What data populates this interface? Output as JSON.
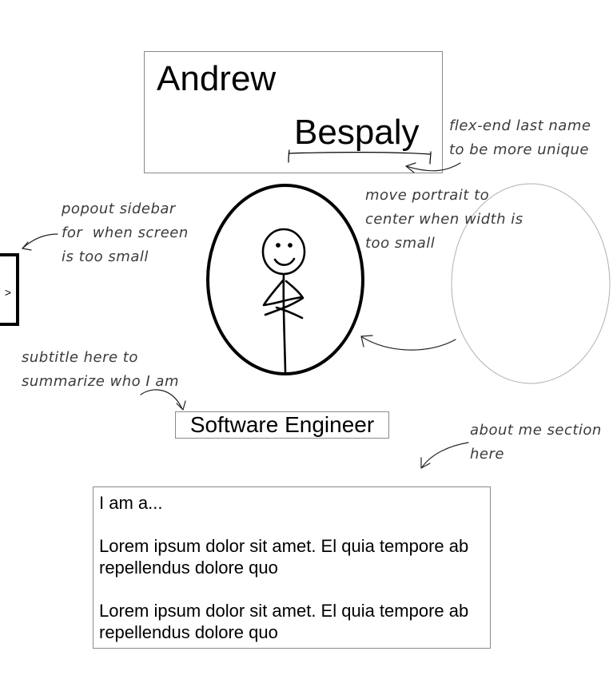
{
  "header": {
    "first_name": "Andrew",
    "last_name": "Bespaly"
  },
  "sidebar": {
    "toggle_label": ">"
  },
  "subtitle": "Software Engineer",
  "about": {
    "heading": "I am a...",
    "paragraphs": [
      "Lorem ipsum dolor sit amet. El quia tempore ab repellendus dolore quo",
      "Lorem ipsum dolor sit amet. El quia tempore ab repellendus dolore quo"
    ]
  },
  "annotations": {
    "last_name": "flex-end last name\nto be more unique",
    "sidebar": "popout sidebar\nfor  when screen\nis too small",
    "portrait": "move portrait to\ncenter when width is\ntoo small",
    "subtitle": "subtitle here to\nsummarize who I am",
    "about": "about me section\nhere"
  },
  "colors": {
    "box_border": "#8a8a8a",
    "sketch_line": "#000000",
    "note_text": "#3b3b3b",
    "ghost_portrait": "#b0b0b0"
  }
}
